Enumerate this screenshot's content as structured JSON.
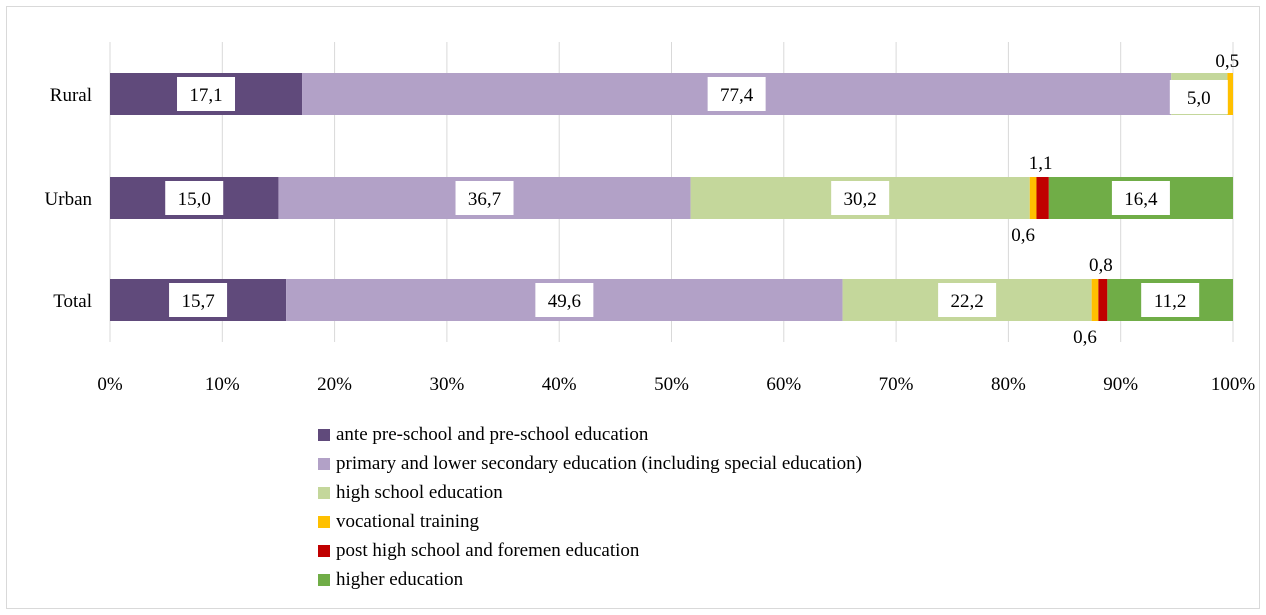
{
  "chart_data": {
    "type": "bar",
    "orientation": "horizontal",
    "stacked": "percent",
    "categories": [
      "Rural",
      "Urban",
      "Total"
    ],
    "series": [
      {
        "name": "ante pre-school and pre-school education",
        "color": "#604a7b",
        "values": [
          17.1,
          15.0,
          15.7
        ],
        "labels": [
          "17,1",
          "15,0",
          "15,7"
        ]
      },
      {
        "name": "primary and lower secondary education (including special education)",
        "color": "#b2a1c7",
        "values": [
          77.4,
          36.7,
          49.6
        ],
        "labels": [
          "77,4",
          "36,7",
          "49,6"
        ]
      },
      {
        "name": "high school education",
        "color": "#c4d79b",
        "values": [
          5.0,
          30.2,
          22.2
        ],
        "labels": [
          "5,0",
          "30,2",
          "22,2"
        ]
      },
      {
        "name": "vocational training",
        "color": "#ffc000",
        "values": [
          0.5,
          0.6,
          0.6
        ],
        "labels": [
          "0,5",
          "0,6",
          "0,6"
        ]
      },
      {
        "name": "post high school and foremen education",
        "color": "#c00000",
        "values": [
          0.0,
          1.1,
          0.8
        ],
        "labels": [
          "",
          "1,1",
          "0,8"
        ]
      },
      {
        "name": "higher education",
        "color": "#70ad47",
        "values": [
          0.0,
          16.4,
          11.2
        ],
        "labels": [
          "",
          "16,4",
          "11,2"
        ]
      }
    ],
    "x_ticks": [
      "0%",
      "10%",
      "20%",
      "30%",
      "40%",
      "50%",
      "60%",
      "70%",
      "80%",
      "90%",
      "100%"
    ],
    "xlim": [
      0,
      100
    ],
    "grid": "vertical",
    "legend_position": "bottom"
  }
}
